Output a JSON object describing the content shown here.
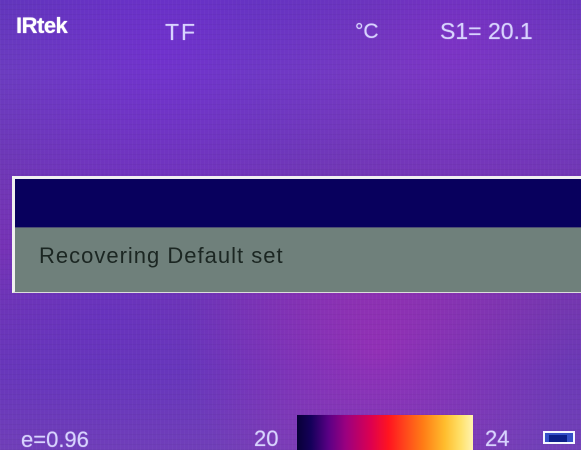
{
  "top_bar": {
    "brand": "IRtek",
    "mode": "TF",
    "unit": "°C",
    "spot_readout": "S1= 20.1"
  },
  "dialog": {
    "message": "Recovering Default set"
  },
  "bottom_bar": {
    "emissivity": "e=0.96",
    "scale_min": "20",
    "scale_max": "24"
  },
  "colors": {
    "thermal_background": "#6d39b6",
    "dialog_header": "#08005d",
    "dialog_body": "#6f807b",
    "text_primary": "#d7d3ff"
  },
  "icons": {
    "palette": "palette-icon"
  }
}
